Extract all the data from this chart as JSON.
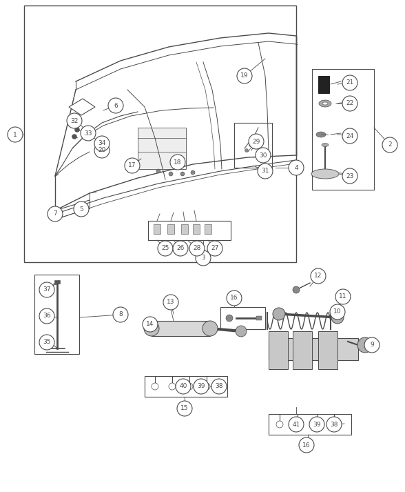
{
  "bg": "#ffffff",
  "lc": "#4a4a4a",
  "lc_thin": "#666666",
  "fs": 6.5,
  "cr": 0.018
}
